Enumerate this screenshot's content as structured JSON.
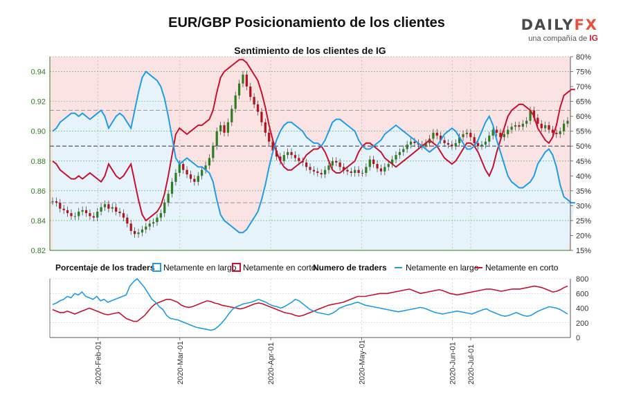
{
  "title": "EUR/GBP Posicionamiento de los clientes",
  "logo": {
    "word_a": "DAILY",
    "word_b": "FX",
    "tagline": "una compañía de",
    "brand": "IG"
  },
  "colors": {
    "long": "#1e9ce6",
    "short": "#c8102e",
    "up": "#2f7d1e",
    "down": "#b5121b",
    "long_fill": "#e6f3fb",
    "short_fill": "#fbe3e4",
    "axis_green": "#2e7d1f"
  },
  "chart_data": [
    {
      "type": "line",
      "subtitle": "Sentimiento de los clientes de IG",
      "x_dates": [
        "2020-Feb-01",
        "2020-Mar-01",
        "2020-Apr-01",
        "2020-May-01",
        "2020-Jun-01",
        "2020-Jul-01"
      ],
      "price_ticks": [
        "0.82",
        "0.84",
        "0.86",
        "0.88",
        "0.90",
        "0.92",
        "0.94"
      ],
      "pct_ticks": [
        "15%",
        "20%",
        "25%",
        "30%",
        "35%",
        "40%",
        "45%",
        "50%",
        "55%",
        "60%",
        "65%",
        "70%",
        "75%",
        "80%"
      ],
      "price_ylim": [
        0.82,
        0.95
      ],
      "pct_ylim": [
        15,
        80
      ],
      "reference_lines_pct": [
        31,
        50,
        62
      ],
      "price_close": [
        0.853,
        0.852,
        0.848,
        0.847,
        0.845,
        0.843,
        0.843,
        0.846,
        0.847,
        0.845,
        0.843,
        0.842,
        0.846,
        0.849,
        0.851,
        0.848,
        0.849,
        0.846,
        0.845,
        0.842,
        0.838,
        0.833,
        0.831,
        0.832,
        0.834,
        0.836,
        0.838,
        0.839,
        0.842,
        0.845,
        0.852,
        0.858,
        0.866,
        0.872,
        0.878,
        0.874,
        0.871,
        0.868,
        0.866,
        0.87,
        0.874,
        0.877,
        0.882,
        0.89,
        0.9,
        0.904,
        0.899,
        0.906,
        0.915,
        0.924,
        0.932,
        0.938,
        0.93,
        0.923,
        0.918,
        0.913,
        0.906,
        0.899,
        0.893,
        0.887,
        0.883,
        0.88,
        0.884,
        0.886,
        0.884,
        0.882,
        0.88,
        0.879,
        0.876,
        0.874,
        0.873,
        0.872,
        0.871,
        0.874,
        0.877,
        0.88,
        0.879,
        0.876,
        0.874,
        0.873,
        0.872,
        0.874,
        0.872,
        0.872,
        0.876,
        0.881,
        0.878,
        0.875,
        0.873,
        0.876,
        0.878,
        0.881,
        0.884,
        0.886,
        0.888,
        0.891,
        0.893,
        0.892,
        0.891,
        0.89,
        0.892,
        0.895,
        0.899,
        0.897,
        0.894,
        0.892,
        0.891,
        0.89,
        0.892,
        0.896,
        0.898,
        0.899,
        0.896,
        0.892,
        0.89,
        0.891,
        0.893,
        0.897,
        0.901,
        0.899,
        0.896,
        0.898,
        0.901,
        0.903,
        0.904,
        0.903,
        0.905,
        0.907,
        0.914,
        0.909,
        0.905,
        0.902,
        0.904,
        0.901,
        0.899,
        0.898,
        0.9,
        0.905,
        0.907
      ],
      "long_pct": [
        55,
        56,
        58,
        59,
        60,
        61,
        61,
        60,
        61,
        60,
        59,
        60,
        61,
        62,
        60,
        56,
        58,
        60,
        61,
        60,
        58,
        56,
        62,
        68,
        73,
        75,
        74,
        73,
        72,
        70,
        66,
        60,
        53,
        46,
        44,
        45,
        46,
        45,
        44,
        43,
        43,
        42,
        41,
        38,
        32,
        27,
        25,
        24,
        23,
        22,
        21,
        21,
        22,
        24,
        26,
        28,
        32,
        37,
        43,
        48,
        52,
        55,
        57,
        58,
        58,
        57,
        56,
        55,
        53,
        52,
        51,
        51,
        50,
        52,
        55,
        58,
        59,
        59,
        58,
        57,
        56,
        55,
        52,
        50,
        49,
        49,
        50,
        51,
        52,
        54,
        55,
        56,
        57,
        56,
        55,
        54,
        53,
        52,
        51,
        50,
        49,
        48,
        49,
        50,
        52,
        54,
        55,
        56,
        55,
        53,
        51,
        49,
        49,
        50,
        52,
        55,
        58,
        60,
        57,
        52,
        48,
        44,
        40,
        38,
        37,
        36,
        36,
        37,
        38,
        40,
        44,
        46,
        48,
        49,
        47,
        43,
        37,
        33,
        32,
        31,
        31
      ],
      "short_pct": [
        45,
        44,
        42,
        41,
        40,
        39,
        39,
        40,
        39,
        40,
        41,
        40,
        39,
        38,
        40,
        44,
        42,
        40,
        39,
        40,
        42,
        44,
        38,
        32,
        27,
        25,
        26,
        27,
        28,
        30,
        34,
        40,
        47,
        54,
        56,
        55,
        54,
        55,
        56,
        57,
        57,
        58,
        59,
        62,
        68,
        73,
        75,
        76,
        77,
        78,
        79,
        79,
        78,
        76,
        74,
        72,
        68,
        63,
        57,
        52,
        48,
        45,
        43,
        42,
        42,
        43,
        44,
        45,
        47,
        48,
        49,
        49,
        50,
        48,
        45,
        42,
        41,
        41,
        42,
        43,
        44,
        45,
        48,
        50,
        51,
        51,
        50,
        49,
        48,
        46,
        45,
        44,
        43,
        44,
        45,
        46,
        47,
        48,
        49,
        50,
        51,
        52,
        51,
        50,
        48,
        46,
        45,
        44,
        45,
        47,
        49,
        51,
        51,
        50,
        48,
        45,
        42,
        40,
        43,
        48,
        52,
        56,
        60,
        62,
        63,
        64,
        64,
        63,
        62,
        60,
        56,
        54,
        52,
        51,
        53,
        57,
        63,
        67,
        68,
        69,
        69
      ]
    },
    {
      "type": "line",
      "legend_pct_title": "Porcentaje de los traders",
      "legend_pct_long": "Netamente en largo",
      "legend_pct_short": "Netamente en corto",
      "legend_num_title": "Numero de traders",
      "legend_num_long": "Netamente en largo",
      "legend_num_short": "Netamente en corto",
      "y_ticks": [
        "0",
        "200",
        "400",
        "600",
        "800"
      ],
      "ylim": [
        0,
        800
      ],
      "long_traders": [
        450,
        470,
        500,
        520,
        560,
        540,
        600,
        580,
        620,
        560,
        540,
        520,
        560,
        500,
        520,
        480,
        500,
        520,
        540,
        560,
        580,
        700,
        760,
        800,
        740,
        680,
        600,
        520,
        480,
        420,
        380,
        300,
        260,
        250,
        240,
        220,
        200,
        180,
        160,
        140,
        130,
        120,
        110,
        100,
        110,
        150,
        200,
        260,
        330,
        390,
        420,
        440,
        460,
        470,
        480,
        500,
        520,
        500,
        480,
        450,
        430,
        420,
        400,
        420,
        450,
        480,
        520,
        500,
        460,
        420,
        380,
        360,
        340,
        330,
        320,
        310,
        330,
        360,
        400,
        420,
        440,
        450,
        470,
        480,
        460,
        440,
        430,
        420,
        410,
        400,
        390,
        380,
        370,
        360,
        350,
        360,
        370,
        380,
        390,
        400,
        410,
        400,
        380,
        360,
        340,
        330,
        320,
        330,
        340,
        350,
        360,
        350,
        340,
        330,
        320,
        340,
        360,
        380,
        390,
        360,
        340,
        320,
        300,
        290,
        300,
        320,
        340,
        320,
        300,
        290,
        300,
        330,
        360,
        380,
        400,
        420,
        410,
        400,
        380,
        350,
        320
      ],
      "short_traders": [
        380,
        360,
        340,
        340,
        360,
        340,
        320,
        340,
        360,
        380,
        400,
        380,
        360,
        340,
        320,
        310,
        320,
        330,
        340,
        300,
        260,
        240,
        220,
        220,
        260,
        300,
        360,
        420,
        460,
        480,
        500,
        520,
        520,
        500,
        480,
        440,
        420,
        410,
        420,
        440,
        460,
        480,
        500,
        490,
        470,
        460,
        440,
        430,
        420,
        410,
        400,
        390,
        400,
        420,
        440,
        460,
        470,
        460,
        440,
        420,
        400,
        380,
        360,
        340,
        330,
        320,
        300,
        290,
        300,
        320,
        340,
        360,
        380,
        400,
        420,
        440,
        450,
        460,
        470,
        480,
        500,
        520,
        540,
        560,
        560,
        560,
        570,
        580,
        590,
        600,
        600,
        600,
        610,
        620,
        630,
        640,
        650,
        660,
        640,
        620,
        600,
        610,
        620,
        630,
        640,
        650,
        640,
        620,
        600,
        590,
        580,
        590,
        600,
        610,
        620,
        630,
        640,
        650,
        660,
        660,
        650,
        640,
        630,
        640,
        650,
        660,
        660,
        660,
        670,
        680,
        690,
        700,
        690,
        680,
        660,
        640,
        620,
        630,
        650,
        680,
        700
      ]
    }
  ]
}
